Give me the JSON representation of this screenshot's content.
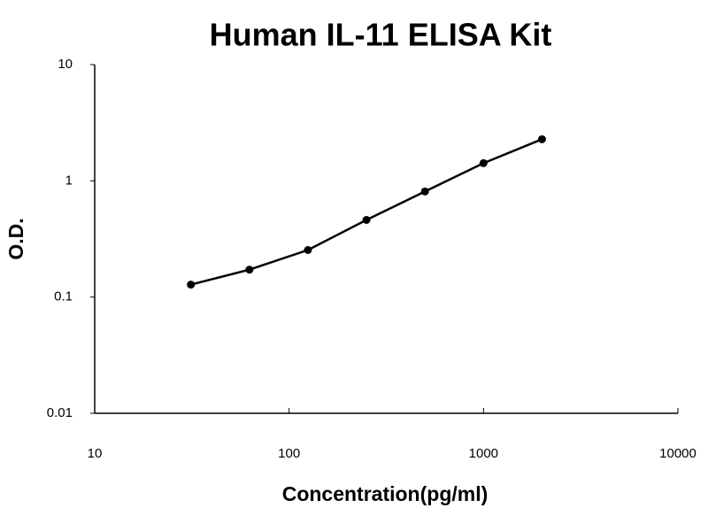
{
  "chart_data": {
    "type": "line",
    "title": "Human IL-11 ELISA Kit",
    "xlabel": "Concentration(pg/ml)",
    "ylabel": "O.D.",
    "x": [
      31.25,
      62.5,
      125,
      250,
      500,
      1000,
      2000
    ],
    "values": [
      0.128,
      0.172,
      0.254,
      0.461,
      0.81,
      1.42,
      2.28
    ],
    "color": "#000000",
    "markers": true,
    "xscale": "log",
    "yscale": "log",
    "xlim": [
      10,
      10000
    ],
    "ylim": [
      0.01,
      10
    ],
    "xticks": [
      10,
      100,
      1000,
      10000
    ],
    "yticks": [
      0.01,
      0.1,
      1,
      10
    ],
    "grid": false
  }
}
